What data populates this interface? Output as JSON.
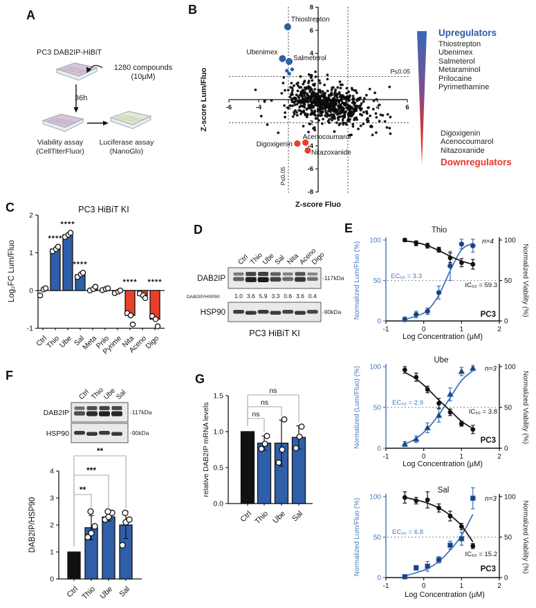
{
  "panels": {
    "A": {
      "letter": "A",
      "cell_label": "PC3 DAB2IP-HiBiT",
      "compounds_line1": "1280 compounds",
      "compounds_line2": "(10µM)",
      "incubation": "36h",
      "viability_line1": "Viability assay",
      "viability_line2": "(CellTiterFluor)",
      "luciferase_line1": "Luciferase assay",
      "luciferase_line2": "(NanoGlo)"
    },
    "B": {
      "letter": "B"
    },
    "C": {
      "letter": "C"
    },
    "D": {
      "letter": "D"
    },
    "E": {
      "letter": "E"
    },
    "F": {
      "letter": "F"
    },
    "G": {
      "letter": "G"
    }
  },
  "colors": {
    "blue": "#2e5fa8",
    "red": "#e8402c",
    "blue_line": "#3a6db8",
    "axis_blue": "#4878bc",
    "point_navy": "#1e3f70",
    "bracket_gray": "#a8a8a8",
    "legend_blue": "#2b5ca8",
    "legend_red": "#e8352c"
  },
  "legend": {
    "up_title": "Upregulators",
    "up_items": [
      "Thiostrepton",
      "Ubenimex",
      "Salmeterol",
      "Metaraminol",
      "Prilocaine",
      "Pyrimethamine"
    ],
    "down_items": [
      "Digoxigenin",
      "Acenocoumarol",
      "Nitazoxanide"
    ],
    "down_title": "Downregulators"
  },
  "blots": {
    "D": {
      "lanes": [
        "Ctrl",
        "Thio",
        "Ube",
        "Sal",
        "Nita",
        "Aceno",
        "Digo"
      ],
      "rows": [
        {
          "label": "DAB2IP",
          "marker": "-117kDa",
          "doublet": true,
          "intensities": [
            0.45,
            0.95,
            1.0,
            0.7,
            0.4,
            0.8,
            0.35
          ]
        },
        {
          "label": "HSP90",
          "marker": "-90kDa",
          "doublet": false,
          "intensities": [
            0.82,
            0.85,
            0.85,
            0.82,
            0.8,
            0.85,
            0.78
          ]
        }
      ],
      "ratio_label": "DAB2IP/HSP90",
      "ratios": [
        "1.0",
        "3.6",
        "5.9",
        "3.3",
        "0.6",
        "3.6",
        "0.4"
      ],
      "caption": "PC3 HiBiT KI"
    },
    "F": {
      "lanes": [
        "Ctrl",
        "Thio",
        "Ube",
        "Sal"
      ],
      "rows": [
        {
          "label": "DAB2IP",
          "marker": "-117kDa",
          "doublet": true,
          "intensities": [
            0.6,
            0.88,
            0.95,
            0.9
          ]
        },
        {
          "label": "HSP90",
          "marker": "-90kDa",
          "doublet": false,
          "intensities": [
            0.85,
            0.85,
            0.85,
            0.85
          ]
        }
      ]
    }
  },
  "chart_data": [
    {
      "id": "B",
      "type": "scatter",
      "xlabel": "Z-score Fluo",
      "ylabel": "Z-score Lum/Fluo",
      "xlim": [
        -6,
        6
      ],
      "ylim": [
        -8,
        8
      ],
      "xticks": [
        -6,
        -4,
        -2,
        2,
        4,
        6
      ],
      "yticks": [
        -8,
        -6,
        -4,
        -2,
        2,
        4,
        6,
        8
      ],
      "threshold_x": [
        -2,
        2
      ],
      "threshold_y": [
        -2,
        2
      ],
      "p_label": "P≤0.05",
      "cloud": {
        "count": 480,
        "center": [
          0.9,
          -0.35
        ],
        "sd": [
          1.25,
          0.75
        ],
        "count2": 130,
        "center2": [
          -0.3,
          -0.1
        ],
        "sd2": [
          0.8,
          0.8
        ],
        "outliers": 60,
        "outlier_sd": [
          2.6,
          1.6
        ]
      },
      "up_points": [
        {
          "label": "Thiostrepton",
          "x": -2.05,
          "y": 6.3
        },
        {
          "label": "Ubenimex",
          "x": -2.4,
          "y": 3.55
        },
        {
          "label": "Salmeterol",
          "x": -1.95,
          "y": 3.3
        }
      ],
      "up_minor": [
        [
          -2.1,
          2.5
        ],
        [
          -1.75,
          2.62
        ],
        [
          -1.95,
          2.25
        ]
      ],
      "down_points": [
        {
          "label": "Digoxigenin",
          "x": -1.4,
          "y": -3.8
        },
        {
          "label": "Acenocoumarol",
          "x": -0.85,
          "y": -3.72
        },
        {
          "label": "Nitazoxanide",
          "x": -0.7,
          "y": -4.4
        }
      ]
    },
    {
      "id": "C",
      "type": "bar",
      "title": "PC3 HiBiT KI",
      "ylabel": "Log₂FC Lum/Fluo",
      "ylim": [
        -1,
        2
      ],
      "ytick_vals": [
        -1,
        0,
        1,
        2
      ],
      "ytick_labels": [
        "-1",
        "0",
        "1",
        "2"
      ],
      "categories": [
        "Ctrl",
        "Thio",
        "Ube",
        "Sal",
        "Meta",
        "Prilo",
        "Pyrime",
        "Nita",
        "Aceno",
        "Digo"
      ],
      "values": [
        0,
        1.1,
        1.48,
        0.42,
        0.04,
        0.03,
        -0.04,
        -0.66,
        -0.13,
        -0.76
      ],
      "bar_colors": [
        "none",
        "blue",
        "blue",
        "blue",
        "blue",
        "blue",
        "blue",
        "red",
        "red",
        "red"
      ],
      "points": [
        [
          -0.13,
          0.03,
          0.06
        ],
        [
          1.04,
          1.1,
          1.16
        ],
        [
          1.42,
          1.48,
          1.53
        ],
        [
          0.36,
          0.43,
          0.47
        ],
        [
          0.0,
          0.04,
          0.1
        ],
        [
          0.01,
          0.04,
          0.06
        ],
        [
          -0.07,
          -0.03,
          0.0
        ],
        [
          -0.6,
          -0.66,
          -0.9
        ],
        [
          -0.08,
          -0.13,
          -0.2
        ],
        [
          -0.68,
          -0.76,
          -0.95
        ]
      ],
      "sig": [
        "",
        "****",
        "****",
        "****",
        "",
        "",
        "",
        "****",
        "",
        "****"
      ]
    },
    {
      "id": "E1",
      "type": "dose-response",
      "title": "Thio",
      "n_label": "n=4",
      "ec50_label": "EC₅₀ = 3.3",
      "ic50_label": "IC₅₀ = 59.3",
      "cell_label": "PC3",
      "xlabel": "Log Concentration (µM)",
      "ylabel_left": "Normalized Lum/Fluo (%)",
      "ylabel_right": "Normalized Viability (%)",
      "xlim": [
        -1,
        2
      ],
      "xticks": [
        -1,
        0,
        1,
        2
      ],
      "ytick_vals": [
        0,
        50,
        100
      ],
      "marker": "circle",
      "x": [
        -0.5,
        -0.2,
        0.1,
        0.4,
        0.7,
        1.0,
        1.3
      ],
      "lum": [
        2,
        8,
        12,
        35,
        68,
        95,
        93
      ],
      "lum_err": [
        3,
        4,
        4,
        8,
        18,
        6,
        8
      ],
      "lum_fit": [
        2,
        6,
        13,
        32,
        62,
        88,
        96
      ],
      "via": [
        100,
        96,
        93,
        88,
        78,
        72,
        70
      ],
      "via_err": [
        2,
        3,
        3,
        3,
        6,
        5,
        6
      ],
      "via_fit": [
        99,
        97,
        93,
        87,
        80,
        74,
        70
      ]
    },
    {
      "id": "E2",
      "type": "dose-response",
      "title": "Ube",
      "n_label": "n=3",
      "ec50_label": "EC₅₀ = 2.9",
      "ic50_label": "IC₅₀ = 3.8",
      "cell_label": "PC3",
      "xlabel": "Log Concentration (µM)",
      "ylabel_left": "Normalized (Lum/Fluo) (%)",
      "ylabel_right": "Normalized Viability (%)",
      "xlim": [
        -1,
        2
      ],
      "xticks": [
        -1,
        0,
        1,
        2
      ],
      "ytick_vals": [
        0,
        50,
        100
      ],
      "marker": "triangle",
      "x": [
        -0.5,
        -0.2,
        0.1,
        0.4,
        0.7,
        1.0,
        1.3
      ],
      "lum": [
        5,
        11,
        25,
        40,
        66,
        94,
        98
      ],
      "lum_err": [
        3,
        4,
        6,
        8,
        8,
        5,
        3
      ],
      "lum_fit": [
        5,
        12,
        24,
        41,
        62,
        83,
        95
      ],
      "via": [
        96,
        87,
        72,
        55,
        44,
        30,
        23
      ],
      "via_err": [
        4,
        5,
        4,
        6,
        4,
        3,
        5
      ],
      "via_fit": [
        93,
        85,
        73,
        59,
        46,
        33,
        24
      ]
    },
    {
      "id": "E3",
      "type": "dose-response",
      "title": "Sal",
      "n_label": "n=3",
      "ec50_label": "EC₅₀ = 6.8",
      "ic50_label": "IC₅₀ = 15.2",
      "cell_label": "PC3",
      "xlabel": "Log Concentration (µM)",
      "ylabel_left": "Normalized Lum/Fluo (%)",
      "ylabel_right": "Normalized Viability (%)",
      "xlim": [
        -1,
        2
      ],
      "xticks": [
        -1,
        0,
        1,
        2
      ],
      "ytick_vals": [
        0,
        50,
        100
      ],
      "marker": "square",
      "x": [
        -0.5,
        -0.2,
        0.1,
        0.4,
        0.7,
        1.0,
        1.3
      ],
      "lum": [
        1,
        12,
        14,
        22,
        40,
        48,
        98
      ],
      "lum_err": [
        2,
        3,
        6,
        4,
        5,
        8,
        13
      ],
      "lum_fit": [
        2,
        6,
        11,
        20,
        34,
        52,
        78
      ],
      "via": [
        99,
        95,
        96,
        86,
        76,
        63,
        39
      ],
      "via_err": [
        7,
        4,
        10,
        5,
        6,
        4,
        3
      ],
      "via_fit": [
        99,
        96,
        92,
        86,
        77,
        64,
        44
      ]
    },
    {
      "id": "F",
      "type": "bar",
      "ylabel": "DAB2IP/HSP90",
      "ylim": [
        0,
        4
      ],
      "ytick_vals": [
        0,
        1,
        2,
        3,
        4
      ],
      "ytick_labels": [
        "0",
        "1",
        "2",
        "3",
        "4"
      ],
      "categories": [
        "Ctrl",
        "Thio",
        "Ube",
        "Sal"
      ],
      "values": [
        1.0,
        1.9,
        2.3,
        2.0
      ],
      "bar_colors": [
        "black",
        "blue",
        "blue",
        "blue"
      ],
      "err": [
        0,
        0.45,
        0.15,
        0.5
      ],
      "points": [
        [],
        [
          1.55,
          1.7,
          1.95,
          2.5
        ],
        [
          2.2,
          2.3,
          2.45,
          2.5
        ],
        [
          1.25,
          2.1,
          2.2,
          2.45
        ]
      ],
      "brackets": [
        {
          "from": 0,
          "to": 1,
          "label": "**"
        },
        {
          "from": 0,
          "to": 2,
          "label": "***"
        },
        {
          "from": 0,
          "to": 3,
          "label": "**"
        }
      ]
    },
    {
      "id": "G",
      "type": "bar",
      "ylabel": "relative DAB2IP mRNA levels",
      "ylim": [
        0,
        1.5
      ],
      "ytick_vals": [
        0,
        0.5,
        1,
        1.5
      ],
      "ytick_labels": [
        "0.0",
        "0.5",
        "1.0",
        "1.5"
      ],
      "categories": [
        "Ctrl",
        "Thio",
        "Ube",
        "Sal"
      ],
      "values": [
        1.0,
        0.84,
        0.84,
        0.92
      ],
      "bar_colors": [
        "black",
        "blue",
        "blue",
        "blue"
      ],
      "err": [
        0,
        0.1,
        0.32,
        0.16
      ],
      "points": [
        [],
        [
          0.76,
          0.83,
          0.94
        ],
        [
          0.57,
          0.75,
          1.17
        ],
        [
          0.77,
          0.93,
          1.07
        ]
      ],
      "brackets": [
        {
          "from": 0,
          "to": 1,
          "label": "ns"
        },
        {
          "from": 0,
          "to": 2,
          "label": "ns"
        },
        {
          "from": 0,
          "to": 3,
          "label": "ns"
        }
      ]
    }
  ]
}
